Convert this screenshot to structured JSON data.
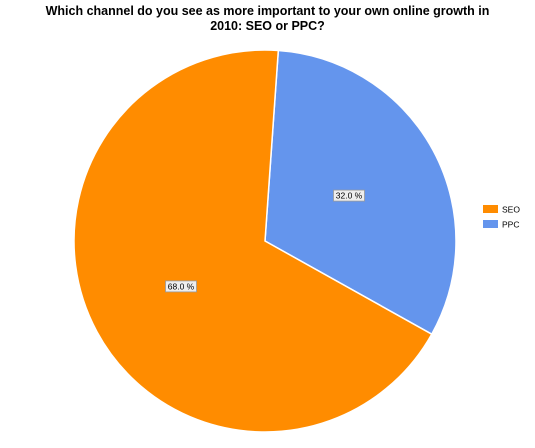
{
  "chart_data": {
    "type": "pie",
    "title_lines": [
      "Which channel do you see as more important to your own online growth in",
      "2010: SEO or PPC?"
    ],
    "slices": [
      {
        "label": "SEO",
        "value": 68.0,
        "display": "68.0 %",
        "color": "#ff8c00"
      },
      {
        "label": "PPC",
        "value": 32.0,
        "display": "32.0 %",
        "color": "#6495ed"
      }
    ],
    "legend_position": "right",
    "start_angle_deg": 4
  }
}
